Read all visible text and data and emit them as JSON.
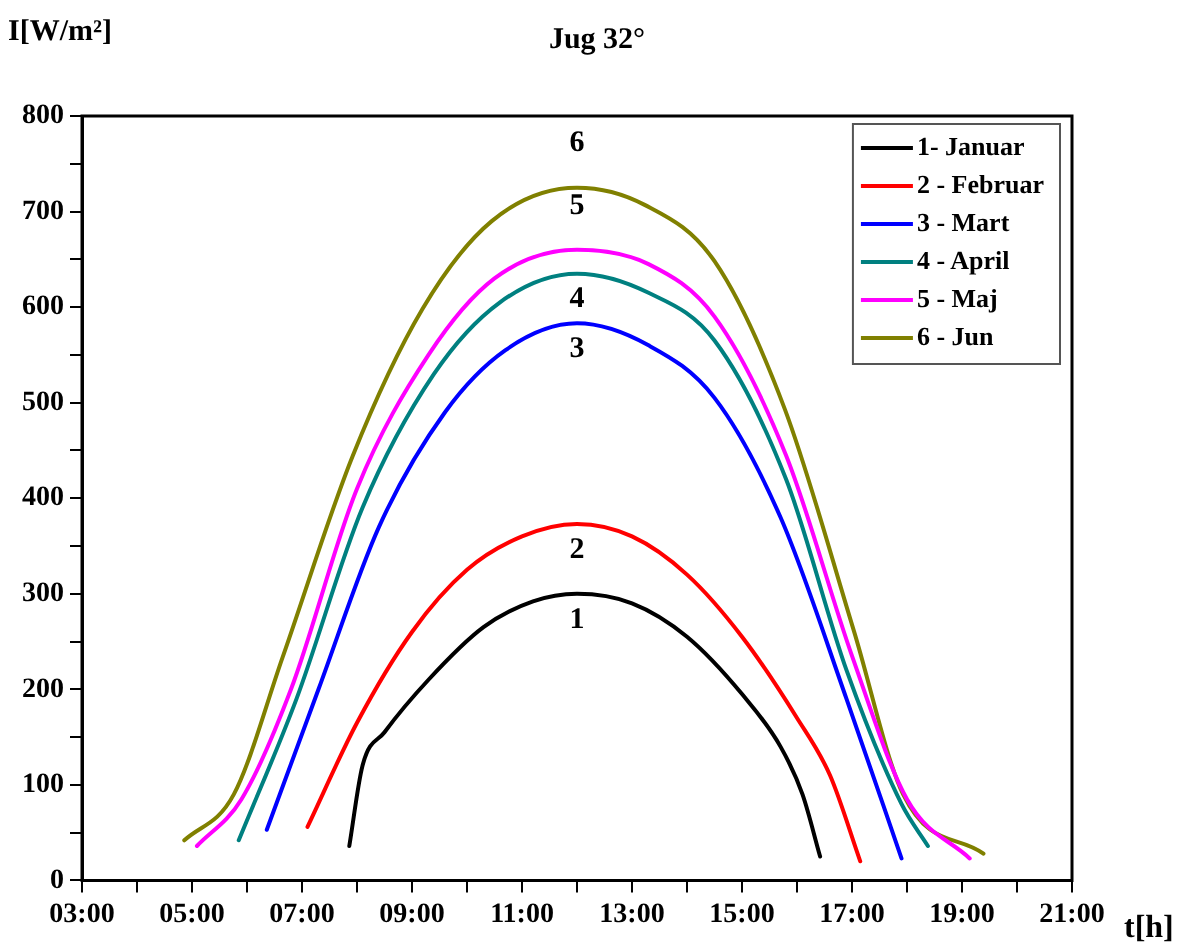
{
  "chart_data": {
    "type": "line",
    "title": "Jug 32°",
    "xlabel": "t[h]",
    "ylabel": "I[W/m²]",
    "xlim": [
      3,
      21
    ],
    "ylim": [
      0,
      800
    ],
    "xticks": [
      {
        "value": 3,
        "label": "03:00"
      },
      {
        "value": 4,
        "label": null
      },
      {
        "value": 5,
        "label": "05:00"
      },
      {
        "value": 6,
        "label": null
      },
      {
        "value": 7,
        "label": "07:00"
      },
      {
        "value": 8,
        "label": null
      },
      {
        "value": 9,
        "label": "09:00"
      },
      {
        "value": 10,
        "label": null
      },
      {
        "value": 11,
        "label": "11:00"
      },
      {
        "value": 12,
        "label": null
      },
      {
        "value": 13,
        "label": "13:00"
      },
      {
        "value": 14,
        "label": null
      },
      {
        "value": 15,
        "label": "15:00"
      },
      {
        "value": 16,
        "label": null
      },
      {
        "value": 17,
        "label": "17:00"
      },
      {
        "value": 18,
        "label": null
      },
      {
        "value": 19,
        "label": "19:00"
      },
      {
        "value": 20,
        "label": null
      },
      {
        "value": 21,
        "label": "21:00"
      }
    ],
    "yticks": [
      0,
      {
        "value": 50,
        "label": null
      },
      100,
      {
        "value": 150,
        "label": null
      },
      200,
      {
        "value": 250,
        "label": null
      },
      300,
      {
        "value": 350,
        "label": null
      },
      400,
      {
        "value": 450,
        "label": null
      },
      500,
      {
        "value": 550,
        "label": null
      },
      600,
      {
        "value": 650,
        "label": null
      },
      700,
      {
        "value": 750,
        "label": null
      },
      800
    ],
    "grid": false,
    "legend": "top right",
    "marker": "none",
    "line_style": "solid",
    "series": [
      {
        "name": "1- Januar",
        "color": "#000000",
        "x": [
          7.86,
          8.1,
          8.5,
          9.3,
          10.3,
          11.2,
          12,
          13,
          14,
          15,
          15.7,
          16.1,
          16.42
        ],
        "values": [
          36,
          120,
          155,
          210,
          265,
          292,
          300,
          290,
          255,
          195,
          140,
          90,
          25
        ]
      },
      {
        "name": "2 - Februar",
        "color": "#ff0000",
        "x": [
          7.1,
          8,
          9,
          10,
          11,
          12,
          13,
          14,
          15,
          16,
          16.6,
          17.15
        ],
        "values": [
          56,
          165,
          260,
          325,
          360,
          373,
          360,
          320,
          255,
          170,
          110,
          20
        ]
      },
      {
        "name": "3 - Mart",
        "color": "#0000ff",
        "x": [
          6.36,
          7.3,
          8.4,
          9.6,
          10.7,
          12,
          13.3,
          14.5,
          15.7,
          16.9,
          17.9
        ],
        "values": [
          53,
          200,
          370,
          490,
          555,
          583,
          560,
          505,
          380,
          190,
          23
        ]
      },
      {
        "name": "4 - April",
        "color": "#008080",
        "x": [
          5.85,
          6.9,
          8.1,
          9.4,
          10.6,
          12,
          13.3,
          14.5,
          15.8,
          16.9,
          17.9,
          18.38
        ],
        "values": [
          42,
          190,
          390,
          530,
          605,
          635,
          615,
          565,
          420,
          220,
          80,
          36
        ]
      },
      {
        "name": "5 - Maj",
        "color": "#ff00ff",
        "x": [
          5.09,
          5.9,
          6.8,
          8,
          9.3,
          10.5,
          12,
          13.3,
          14.5,
          15.8,
          17,
          18,
          19.14
        ],
        "values": [
          36,
          85,
          200,
          410,
          550,
          630,
          660,
          645,
          590,
          445,
          235,
          85,
          23
        ]
      },
      {
        "name": "6 - Jun",
        "color": "#808000",
        "x": [
          4.86,
          5.76,
          6.65,
          7.92,
          9.19,
          10.45,
          12,
          13.23,
          14.5,
          15.78,
          17.03,
          17.93,
          19.39
        ],
        "values": [
          42,
          90,
          234,
          444,
          598,
          690,
          725,
          707,
          648,
          493,
          262,
          90,
          28
        ]
      }
    ],
    "annotations": [
      "1",
      "2",
      "3",
      "4",
      "5",
      "6"
    ]
  }
}
